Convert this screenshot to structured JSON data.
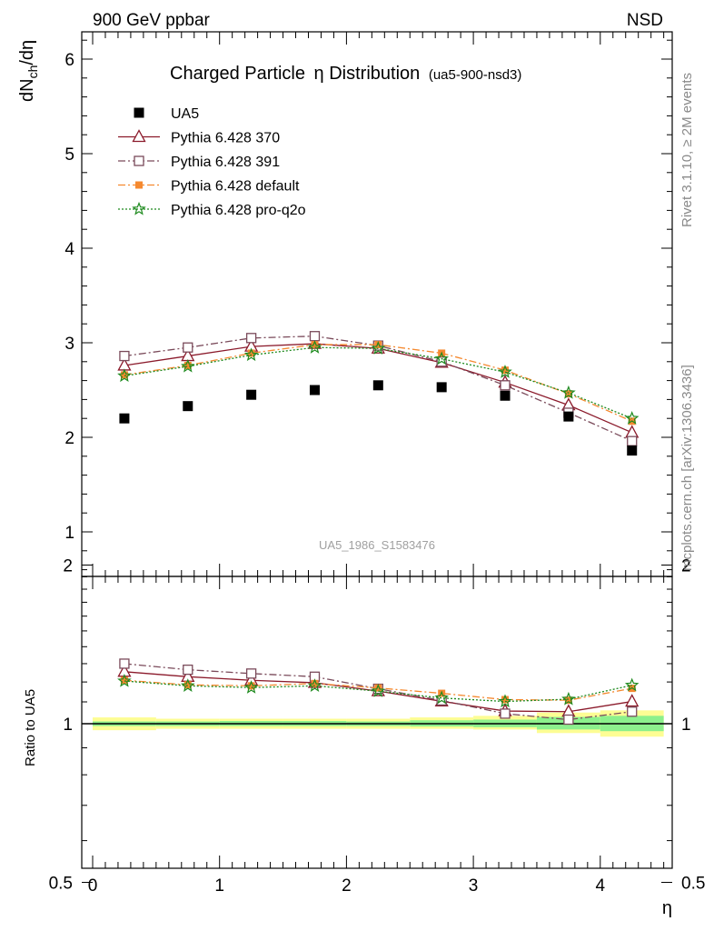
{
  "header": {
    "left": "900 GeV ppbar",
    "right": "NSD",
    "title_main": "Charged Particle",
    "title_eta": "η",
    "title_rest": " Distribution",
    "title_tag": "(ua5-900-nsd3)",
    "side_top": "Rivet 3.1.10, ≥ 2M events",
    "side_bottom": "mcplots.cern.ch [arXiv:1306.3436]",
    "watermark": "UA5_1986_S1583476",
    "ylabel_main": "dN",
    "ylabel_sub": "ch",
    "ylabel_tail": "/dη",
    "ylabel_ratio": "Ratio to UA5",
    "xlabel": "η"
  },
  "chart_data": [
    {
      "type": "scatter",
      "panel": "main",
      "xlim": [
        -0.1,
        4.6
      ],
      "ylim": [
        0.55,
        6.3
      ],
      "yticks": [
        "1",
        "2",
        "3",
        "4",
        "5",
        "6"
      ],
      "x": [
        0.25,
        0.75,
        1.25,
        1.75,
        2.25,
        2.75,
        3.25,
        3.75,
        4.25
      ],
      "series": [
        {
          "name": "UA5",
          "marker": "square-filled",
          "color": "#000000",
          "values": [
            2.2,
            2.33,
            2.45,
            2.5,
            2.55,
            2.53,
            2.44,
            2.22,
            1.86
          ]
        },
        {
          "name": "Pythia 6.428 370",
          "marker": "triangle-open",
          "color": "#8b1a2b",
          "line": "solid",
          "values": [
            2.76,
            2.86,
            2.96,
            2.99,
            2.94,
            2.79,
            2.58,
            2.34,
            2.05
          ]
        },
        {
          "name": "Pythia 6.428 391",
          "marker": "square-open",
          "color": "#7a4a5a",
          "line": "dashdot",
          "values": [
            2.86,
            2.95,
            3.05,
            3.07,
            2.97,
            2.8,
            2.55,
            2.26,
            1.96
          ]
        },
        {
          "name": "Pythia 6.428 default",
          "marker": "square-filled-small",
          "color": "#f5892f",
          "line": "dashdot",
          "values": [
            2.66,
            2.76,
            2.89,
            2.98,
            2.98,
            2.89,
            2.71,
            2.46,
            2.17
          ]
        },
        {
          "name": "Pythia 6.428 pro-q2o",
          "marker": "star",
          "color": "#1e8a1e",
          "line": "dotted",
          "values": [
            2.65,
            2.75,
            2.87,
            2.95,
            2.94,
            2.83,
            2.69,
            2.47,
            2.2
          ]
        }
      ]
    },
    {
      "type": "line",
      "panel": "ratio",
      "xlim": [
        -0.1,
        4.6
      ],
      "ylim": [
        0.35,
        2.35
      ],
      "yticks": [
        "0.5",
        "1",
        "2"
      ],
      "xticks": [
        "0",
        "1",
        "2",
        "3",
        "4"
      ],
      "x": [
        0.25,
        0.75,
        1.25,
        1.75,
        2.25,
        2.75,
        3.25,
        3.75,
        4.25
      ],
      "band_edges": [
        0,
        0.5,
        1.0,
        1.5,
        2.0,
        2.5,
        3.0,
        3.5,
        4.0,
        4.5
      ],
      "band_yellow": [
        [
          0.972,
          1.028
        ],
        [
          0.978,
          1.022
        ],
        [
          0.978,
          1.022
        ],
        [
          0.978,
          1.022
        ],
        [
          0.978,
          1.022
        ],
        [
          0.978,
          1.028
        ],
        [
          0.975,
          1.035
        ],
        [
          0.96,
          1.05
        ],
        [
          0.945,
          1.06
        ]
      ],
      "band_green": [
        [
          0.99,
          1.01
        ],
        [
          0.99,
          1.01
        ],
        [
          0.99,
          1.012
        ],
        [
          0.99,
          1.012
        ],
        [
          0.99,
          1.01
        ],
        [
          0.988,
          1.015
        ],
        [
          0.985,
          1.018
        ],
        [
          0.975,
          1.03
        ],
        [
          0.968,
          1.035
        ]
      ],
      "series": [
        {
          "name": "Pythia 6.428 370",
          "values": [
            1.255,
            1.228,
            1.209,
            1.196,
            1.153,
            1.103,
            1.057,
            1.054,
            1.102
          ]
        },
        {
          "name": "Pythia 6.428 391",
          "values": [
            1.3,
            1.266,
            1.245,
            1.228,
            1.165,
            1.107,
            1.045,
            1.018,
            1.054
          ]
        },
        {
          "name": "Pythia 6.428 default",
          "values": [
            1.209,
            1.185,
            1.18,
            1.192,
            1.169,
            1.142,
            1.111,
            1.108,
            1.167
          ]
        },
        {
          "name": "Pythia 6.428 pro-q2o",
          "values": [
            1.205,
            1.18,
            1.171,
            1.18,
            1.153,
            1.119,
            1.102,
            1.113,
            1.183
          ]
        }
      ]
    }
  ]
}
